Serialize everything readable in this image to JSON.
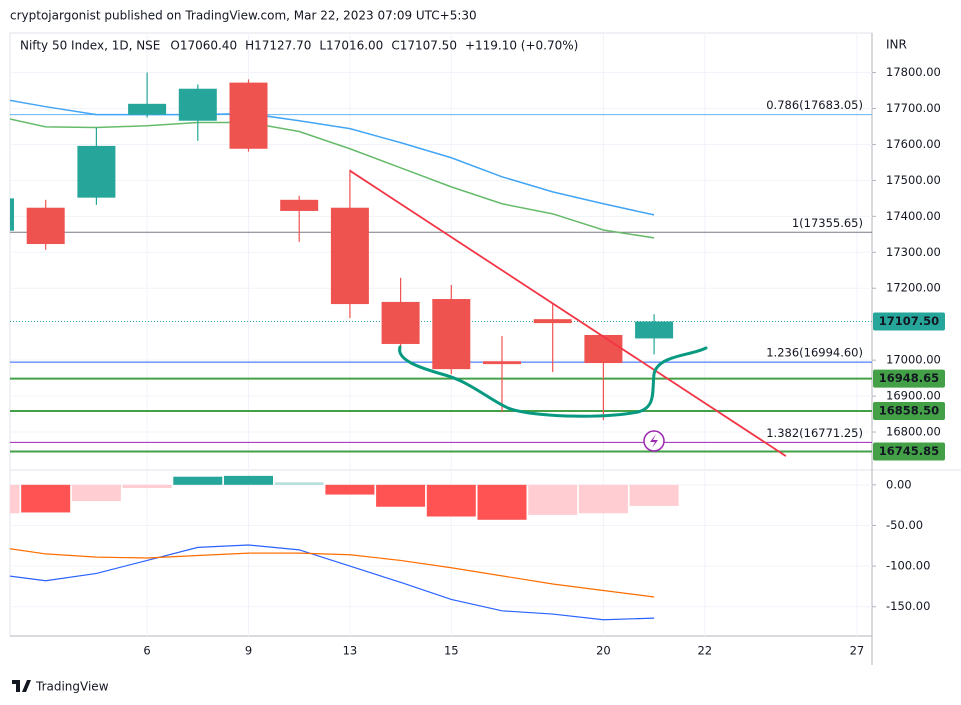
{
  "header": "cryptojargonist published on TradingView.com, Mar 22, 2023 07:09 UTC+5:30",
  "footer": "TradingView",
  "currency": "INR",
  "chart_data": [
    {
      "type": "candlestick",
      "symbol": "Nifty 50 Index, 1D, NSE",
      "legend_values": [
        "O17060.40",
        "H17127.70",
        "L17016.00",
        "C17107.50",
        "+119.10 (+0.70%)"
      ],
      "categories": [
        null,
        null,
        null,
        "6",
        null,
        "9",
        null,
        "13",
        null,
        "15",
        null,
        null,
        "20",
        null,
        "22",
        null,
        null,
        "27"
      ],
      "open": [
        17360,
        17424,
        17452,
        17683,
        17666,
        17772,
        17446,
        17424,
        17162,
        17170,
        16997,
        17114,
        17070,
        17060.4,
        null,
        null,
        null,
        null
      ],
      "high": [
        17450,
        17446,
        17647,
        17800,
        17767,
        17781,
        17457,
        17530,
        17229,
        17209,
        17067,
        17156,
        17070,
        17127.7,
        null,
        null,
        null,
        null
      ],
      "low": [
        17350,
        17307,
        17432,
        17675,
        17610,
        17580,
        17329,
        17117,
        17028,
        16961,
        16855,
        16967,
        16833,
        17016.0,
        null,
        null,
        null,
        null
      ],
      "close": [
        17450,
        17323,
        17596,
        17713,
        17755,
        17588,
        17415,
        17156,
        17045,
        16975,
        16989,
        17103,
        16992,
        17107.5,
        null,
        null,
        null,
        null
      ],
      "up_color": "#26a69a",
      "down_color": "#ef5350",
      "lines": [
        {
          "color": "#42a5f5",
          "values": [
            17730,
            17705,
            17683,
            17683,
            17683,
            17686,
            17666,
            17644,
            17605,
            17563,
            17510,
            17468,
            17435,
            17404,
            null,
            null,
            null,
            null
          ]
        },
        {
          "color": "#66bb6a",
          "values": [
            17680,
            17649,
            17647,
            17652,
            17661,
            17661,
            17636,
            17588,
            17535,
            17482,
            17435,
            17407,
            17362,
            17340,
            null,
            null,
            null,
            null
          ]
        }
      ],
      "levels": [
        {
          "label": "0.786(17683.05)",
          "value": 17683.05,
          "color": "#64b5f6"
        },
        {
          "label": "1(17355.65)",
          "value": 17355.65,
          "color": "#787b86"
        },
        {
          "label": "1.236(16994.60)",
          "value": 16994.6,
          "color": "#2962ff"
        },
        {
          "label": "1.382(16771.25)",
          "value": 16771.25,
          "color": "#9c27b0"
        }
      ],
      "price_lines": [
        {
          "value": 17107.5,
          "label": "17107.50",
          "color": "#26a69a",
          "style": "dotted"
        },
        {
          "value": 16948.65,
          "label": "16948.65",
          "color": "#43a047",
          "style": "solid"
        },
        {
          "value": 16858.5,
          "label": "16858.50",
          "color": "#43a047",
          "style": "solid"
        },
        {
          "value": 16745.85,
          "label": "16745.85",
          "color": "#43a047",
          "style": "solid"
        }
      ],
      "trendline": {
        "x": [
          7,
          15.6
        ],
        "values": [
          17527,
          16733
        ],
        "color": "#f23645"
      },
      "ylim": [
        16700,
        17910
      ],
      "yticks": [
        {
          "value": 16800,
          "label": "16800.00"
        },
        {
          "value": 16900,
          "label": "16900.00"
        },
        {
          "value": 17000,
          "label": "17000.00"
        },
        {
          "value": 17200,
          "label": "17200.00"
        },
        {
          "value": 17300,
          "label": "17300.00"
        },
        {
          "value": 17400,
          "label": "17400.00"
        },
        {
          "value": 17500,
          "label": "17500.00"
        },
        {
          "value": 17600,
          "label": "17600.00"
        },
        {
          "value": 17700,
          "label": "17700.00"
        },
        {
          "value": 17800,
          "label": "17800.00"
        }
      ],
      "grid": true
    },
    {
      "type": "macd",
      "histogram": [
        -35,
        -34,
        -20,
        -4,
        10,
        11,
        3,
        -12,
        -27,
        -39,
        -43,
        -37,
        -35,
        -26,
        null,
        null,
        null,
        null
      ],
      "histogram_colors": [
        "#ffcdd2",
        "#ff5252",
        "#ffcdd2",
        "#ffcdd2",
        "#26a69a",
        "#26a69a",
        "#b2dfdb",
        "#ff5252",
        "#ff5252",
        "#ff5252",
        "#ff5252",
        "#ffcdd2",
        "#ffcdd2",
        "#ffcdd2",
        null,
        null,
        null,
        null
      ],
      "lines": [
        {
          "color": "#2962ff",
          "values": [
            -110,
            -118,
            -109,
            -93,
            -77,
            -74,
            -80,
            -100,
            -120,
            -141,
            -155,
            -159,
            -166,
            -164,
            null,
            null,
            null,
            null
          ]
        },
        {
          "color": "#ff6d00",
          "values": [
            -76,
            -85,
            -89,
            -90,
            -87,
            -84,
            -84,
            -86,
            -93,
            -102,
            -112,
            -122,
            -130,
            -138,
            null,
            null,
            null,
            null
          ]
        }
      ],
      "ylim": [
        -186,
        17
      ],
      "yticks": [
        {
          "value": -150,
          "label": "-150.00"
        },
        {
          "value": -100,
          "label": "-100.00"
        },
        {
          "value": -50,
          "label": "-50.00"
        },
        {
          "value": 0,
          "label": "0.00"
        }
      ],
      "grid": true
    }
  ]
}
